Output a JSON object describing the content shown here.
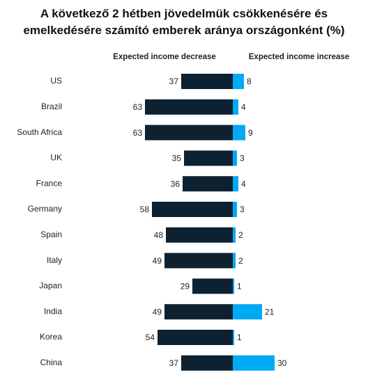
{
  "chart_data": {
    "type": "diverging-bar",
    "title": "A következő 2 hétben jövedelmük csökkenésére és emelkedésére számító emberek aránya országonként (%)",
    "categories": [
      "US",
      "Brazil",
      "South Africa",
      "UK",
      "France",
      "Germany",
      "Spain",
      "Italy",
      "Japan",
      "India",
      "Korea",
      "China"
    ],
    "series": [
      {
        "name": "Expected income decrease",
        "color": "#0d2131",
        "values": [
          37,
          63,
          63,
          35,
          36,
          58,
          48,
          49,
          29,
          49,
          54,
          37
        ]
      },
      {
        "name": "Expected income increase",
        "color": "#00a9f4",
        "values": [
          8,
          4,
          9,
          3,
          4,
          3,
          2,
          2,
          1,
          21,
          1,
          30
        ]
      }
    ]
  }
}
